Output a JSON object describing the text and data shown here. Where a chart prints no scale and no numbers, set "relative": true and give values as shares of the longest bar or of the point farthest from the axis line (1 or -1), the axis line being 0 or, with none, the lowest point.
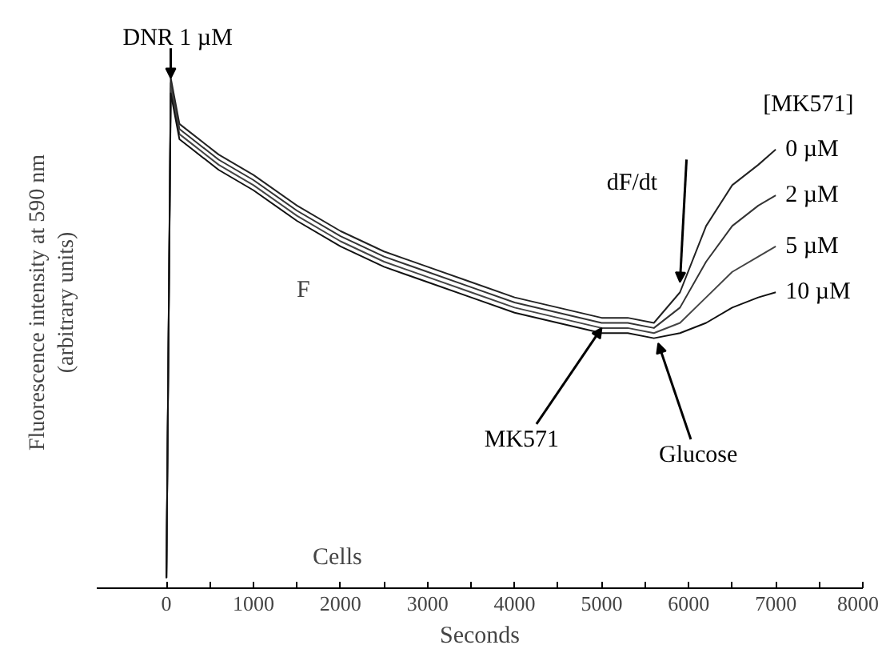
{
  "chart_data": {
    "type": "line",
    "relative": true,
    "xlabel": "Seconds",
    "ylabel": "Fluorescence intensity at 590 nm\n(arbitrary units)",
    "legend_title": "[MK571]",
    "xlim": [
      -800,
      8000
    ],
    "xticks": [
      0,
      {
        "value": 500,
        "label": null
      },
      1000,
      {
        "value": 1500,
        "label": null
      },
      2000,
      {
        "value": 2500,
        "label": null
      },
      3000,
      {
        "value": 3500,
        "label": null
      },
      4000,
      {
        "value": 4500,
        "label": null
      },
      5000,
      {
        "value": 5500,
        "label": null
      },
      6000,
      {
        "value": 6500,
        "label": null
      },
      7000,
      {
        "value": 7500,
        "label": null
      },
      8000
    ],
    "x": [
      0,
      50,
      150,
      300,
      600,
      1000,
      1500,
      2000,
      2500,
      3000,
      3500,
      4000,
      4500,
      5000,
      5300,
      5600,
      5900,
      6200,
      6500,
      6800,
      7000
    ],
    "series": [
      {
        "name": "0 µM",
        "color": "#222222",
        "values": [
          0.02,
          1.0,
          0.91,
          0.89,
          0.85,
          0.81,
          0.75,
          0.7,
          0.66,
          0.63,
          0.6,
          0.57,
          0.55,
          0.53,
          0.53,
          0.52,
          0.58,
          0.71,
          0.79,
          0.83,
          0.86
        ]
      },
      {
        "name": "2 µM",
        "color": "#333333",
        "values": [
          0.02,
          0.99,
          0.9,
          0.88,
          0.84,
          0.8,
          0.74,
          0.69,
          0.65,
          0.62,
          0.59,
          0.56,
          0.54,
          0.52,
          0.52,
          0.51,
          0.55,
          0.64,
          0.71,
          0.75,
          0.77
        ]
      },
      {
        "name": "5 µM",
        "color": "#444444",
        "values": [
          0.02,
          0.98,
          0.89,
          0.87,
          0.83,
          0.79,
          0.73,
          0.68,
          0.64,
          0.61,
          0.58,
          0.55,
          0.53,
          0.51,
          0.51,
          0.5,
          0.52,
          0.57,
          0.62,
          0.65,
          0.67
        ]
      },
      {
        "name": "10 µM",
        "color": "#111111",
        "values": [
          0.02,
          0.97,
          0.88,
          0.86,
          0.82,
          0.78,
          0.72,
          0.67,
          0.63,
          0.6,
          0.57,
          0.54,
          0.52,
          0.5,
          0.5,
          0.49,
          0.5,
          0.52,
          0.55,
          0.57,
          0.58
        ]
      }
    ],
    "annotations": [
      {
        "text": "DNR 1 µM",
        "x": 50,
        "y": 1.0
      },
      "F",
      "Cells",
      {
        "text": "MK571",
        "x": 5000,
        "y": 0.51
      },
      {
        "text": "Glucose",
        "x": 5650,
        "y": 0.48
      },
      {
        "text": "dF/dt",
        "x": 5900,
        "y": 0.6
      }
    ]
  }
}
